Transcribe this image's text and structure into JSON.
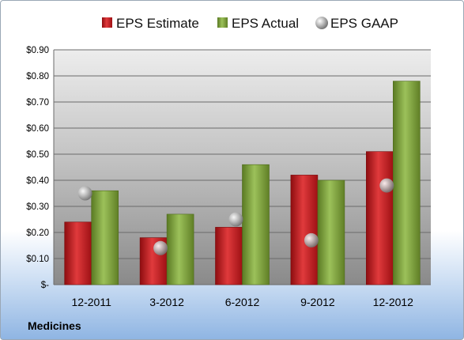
{
  "chart_data": {
    "type": "bar",
    "categories": [
      "12-2011",
      "3-2012",
      "6-2012",
      "9-2012",
      "12-2012"
    ],
    "series": [
      {
        "name": "EPS Estimate",
        "values": [
          0.24,
          0.18,
          0.22,
          0.42,
          0.51
        ],
        "color": "#c0181c"
      },
      {
        "name": "EPS Actual",
        "values": [
          0.36,
          0.27,
          0.46,
          0.4,
          0.78
        ],
        "color": "#7ea33a"
      },
      {
        "name": "EPS GAAP",
        "values": [
          0.35,
          0.14,
          0.25,
          0.17,
          0.38
        ],
        "color": "#b0b0b0",
        "marker": "sphere"
      }
    ],
    "y_ticks": [
      "$-",
      "$0.10",
      "$0.20",
      "$0.30",
      "$0.40",
      "$0.50",
      "$0.60",
      "$0.70",
      "$0.80",
      "$0.90"
    ],
    "ylim": [
      0,
      0.9
    ],
    "grid": true,
    "legend_position": "top"
  },
  "footer": {
    "company": "Medicines"
  }
}
